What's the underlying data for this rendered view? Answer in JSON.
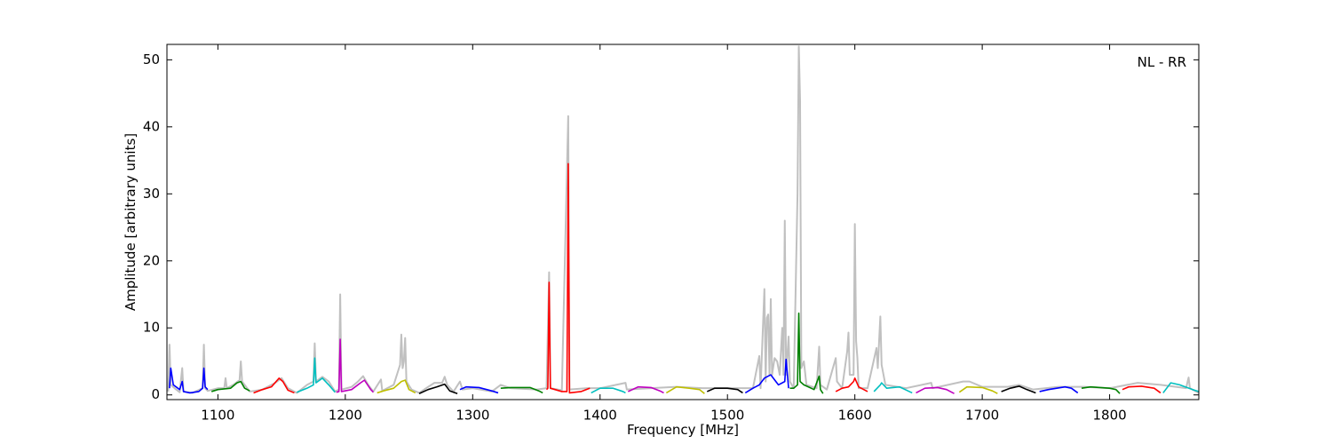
{
  "chart_data": {
    "type": "line",
    "xlabel": "Frequency [MHz]",
    "ylabel": "Amplitude [arbitrary units]",
    "annotation": "NL - RR",
    "xlim": [
      1060,
      1870
    ],
    "ylim": [
      -0.7,
      52.3
    ],
    "xticks": [
      1100,
      1200,
      1300,
      1400,
      1500,
      1600,
      1700,
      1800
    ],
    "yticks": [
      0,
      10,
      20,
      30,
      40,
      50
    ],
    "series": [
      {
        "color": "#c0c0c0",
        "x": [
          1061,
          1062,
          1063,
          1066,
          1070,
          1072,
          1073,
          1080,
          1088,
          1089,
          1090,
          1092,
          1100,
          1105,
          1106,
          1107,
          1112,
          1117,
          1118,
          1119,
          1125,
          1135,
          1145,
          1150,
          1155,
          1162,
          1170,
          1175,
          1176,
          1177,
          1182,
          1187,
          1192,
          1195,
          1196,
          1197,
          1205,
          1210,
          1214,
          1218,
          1222,
          1228,
          1229,
          1238,
          1243,
          1244,
          1245,
          1246,
          1247,
          1248,
          1252,
          1258,
          1265,
          1270,
          1276,
          1278,
          1280,
          1285,
          1290,
          1292,
          1300,
          1315,
          1322,
          1330,
          1350,
          1358,
          1360,
          1361,
          1370,
          1375,
          1376,
          1390,
          1400,
          1420,
          1421,
          1440,
          1460,
          1480,
          1500,
          1520,
          1525,
          1526,
          1529,
          1530,
          1531,
          1532,
          1533,
          1534,
          1535,
          1537,
          1539,
          1541,
          1543,
          1544,
          1545,
          1546,
          1548,
          1549,
          1552,
          1555,
          1556,
          1557,
          1558,
          1560,
          1562,
          1570,
          1572,
          1573,
          1578,
          1585,
          1586,
          1590,
          1594,
          1595,
          1596,
          1599,
          1600,
          1601,
          1602,
          1603,
          1610,
          1617,
          1618,
          1620,
          1621,
          1624,
          1640,
          1660,
          1661,
          1685,
          1690,
          1700,
          1720,
          1729,
          1740,
          1760,
          1780,
          1800,
          1822,
          1840,
          1860,
          1862,
          1863,
          1870
        ],
        "values": [
          0.5,
          7.5,
          1.5,
          1,
          0.4,
          4,
          0.5,
          0.3,
          1,
          7.5,
          1,
          0.6,
          1,
          1,
          2.5,
          1,
          1.5,
          2.2,
          5,
          2,
          0.5,
          0.8,
          1.8,
          2.5,
          1,
          0.3,
          1.5,
          2,
          7.7,
          2,
          2.7,
          2,
          0.5,
          0.8,
          15,
          0.8,
          1.2,
          2,
          2.8,
          1.5,
          0.5,
          2.3,
          0.6,
          1.5,
          4.5,
          9,
          4,
          5,
          8.5,
          2,
          0.8,
          0.3,
          1.2,
          1.8,
          1.8,
          2.7,
          1.5,
          0.5,
          2,
          0.8,
          1,
          0.5,
          1.5,
          1,
          0.8,
          1,
          18.3,
          1,
          0.7,
          41.6,
          0.8,
          1,
          1,
          1.8,
          0.8,
          1,
          1.2,
          1,
          1,
          1,
          5.8,
          1,
          15.8,
          2,
          11.5,
          12,
          3,
          14.3,
          3,
          5.5,
          5,
          3,
          10,
          3,
          26,
          3,
          8.7,
          2,
          1,
          30,
          52,
          44,
          4,
          5,
          1.5,
          1,
          7.2,
          1.5,
          0.8,
          5.5,
          2,
          1,
          6.5,
          9.3,
          3,
          3,
          25.5,
          8,
          5.5,
          1,
          1,
          7,
          4,
          11.7,
          4.5,
          1.5,
          1,
          1.8,
          1,
          2,
          2,
          1.2,
          1.2,
          1.5,
          0.8,
          1.2,
          1.2,
          1,
          1.8,
          1.5,
          1,
          2.6,
          1,
          0.3
        ]
      },
      {
        "color": "#0000ff",
        "x": [
          1062,
          1063,
          1065,
          1070,
          1072,
          1073,
          1078,
          1085,
          1088,
          1089,
          1090,
          1092
        ],
        "values": [
          1,
          4,
          1.5,
          0.8,
          2,
          0.5,
          0.3,
          0.5,
          1,
          4,
          1.2,
          0.8
        ]
      },
      {
        "color": "#008000",
        "x": [
          1095,
          1100,
          1110,
          1115,
          1118,
          1121,
          1125
        ],
        "values": [
          0.5,
          0.8,
          1,
          1.8,
          2,
          1,
          0.6
        ]
      },
      {
        "color": "#ff0000",
        "x": [
          1128,
          1135,
          1142,
          1148,
          1151,
          1155,
          1160
        ],
        "values": [
          0.3,
          0.8,
          1.2,
          2.5,
          2,
          0.7,
          0.3
        ]
      },
      {
        "color": "#00bfbf",
        "x": [
          1162,
          1170,
          1175,
          1176,
          1177,
          1182,
          1187,
          1192
        ],
        "values": [
          0.4,
          1,
          1.5,
          5.5,
          1.8,
          2.5,
          1.5,
          0.4
        ]
      },
      {
        "color": "#bf00bf",
        "x": [
          1193,
          1195,
          1196,
          1197,
          1205,
          1212,
          1215,
          1220,
          1222
        ],
        "values": [
          0.4,
          0.5,
          8.3,
          0.5,
          0.8,
          1.8,
          2.2,
          0.8,
          0.4
        ]
      },
      {
        "color": "#bfbf00",
        "x": [
          1225,
          1230,
          1238,
          1244,
          1247,
          1250,
          1255
        ],
        "values": [
          0.3,
          0.6,
          1,
          2,
          2.2,
          0.8,
          0.3
        ]
      },
      {
        "color": "#000000",
        "x": [
          1258,
          1265,
          1272,
          1278,
          1282,
          1288
        ],
        "values": [
          0.2,
          0.8,
          1.2,
          1.6,
          0.6,
          0.2
        ]
      },
      {
        "color": "#0000ff",
        "x": [
          1290,
          1295,
          1305,
          1315,
          1320
        ],
        "values": [
          0.8,
          1.2,
          1.1,
          0.6,
          0.3
        ]
      },
      {
        "color": "#008000",
        "x": [
          1322,
          1330,
          1345,
          1352,
          1355
        ],
        "values": [
          1,
          1.1,
          1.1,
          0.6,
          0.3
        ]
      },
      {
        "color": "#ff0000",
        "x": [
          1358,
          1359,
          1360,
          1361,
          1370,
          1374,
          1375,
          1376,
          1385,
          1392
        ],
        "values": [
          0.8,
          1,
          16.8,
          1,
          0.5,
          0.5,
          34.5,
          0.3,
          0.5,
          1
        ]
      },
      {
        "color": "#00bfbf",
        "x": [
          1393,
          1400,
          1410,
          1418,
          1420
        ],
        "values": [
          0.3,
          1,
          1,
          0.5,
          0.3
        ]
      },
      {
        "color": "#bf00bf",
        "x": [
          1422,
          1430,
          1440,
          1447,
          1450
        ],
        "values": [
          0.5,
          1.2,
          1.1,
          0.6,
          0.3
        ]
      },
      {
        "color": "#bfbf00",
        "x": [
          1452,
          1460,
          1470,
          1478,
          1482
        ],
        "values": [
          0.3,
          1.2,
          1,
          0.8,
          0.2
        ]
      },
      {
        "color": "#000000",
        "x": [
          1484,
          1490,
          1500,
          1508,
          1512
        ],
        "values": [
          0.5,
          1,
          1,
          0.8,
          0.3
        ]
      },
      {
        "color": "#0000ff",
        "x": [
          1514,
          1520,
          1525,
          1529,
          1534,
          1540,
          1545,
          1546,
          1548
        ],
        "values": [
          0.3,
          1,
          1.5,
          2.5,
          3,
          1.5,
          2,
          5.3,
          1
        ]
      },
      {
        "color": "#008000",
        "x": [
          1549,
          1552,
          1555,
          1556,
          1557,
          1560,
          1568,
          1572,
          1573,
          1575
        ],
        "values": [
          1,
          1,
          1.5,
          12.2,
          2,
          1.5,
          0.8,
          2.8,
          0.8,
          0.2
        ]
      },
      {
        "color": "#ff0000",
        "x": [
          1585,
          1590,
          1595,
          1599,
          1600,
          1603,
          1610
        ],
        "values": [
          0.5,
          1,
          1.2,
          2,
          2.5,
          1.2,
          0.5
        ]
      },
      {
        "color": "#00bfbf",
        "x": [
          1615,
          1620,
          1621,
          1625,
          1635,
          1645
        ],
        "values": [
          0.5,
          1.5,
          1.8,
          1,
          1.2,
          0.3
        ]
      },
      {
        "color": "#bf00bf",
        "x": [
          1648,
          1655,
          1665,
          1672,
          1678
        ],
        "values": [
          0.3,
          1,
          1.1,
          0.8,
          0.2
        ]
      },
      {
        "color": "#bfbf00",
        "x": [
          1682,
          1688,
          1700,
          1708,
          1712
        ],
        "values": [
          0.4,
          1.2,
          1.1,
          0.6,
          0.2
        ]
      },
      {
        "color": "#000000",
        "x": [
          1715,
          1722,
          1729,
          1735,
          1742
        ],
        "values": [
          0.5,
          1,
          1.3,
          0.8,
          0.3
        ]
      },
      {
        "color": "#0000ff",
        "x": [
          1745,
          1752,
          1765,
          1770,
          1775
        ],
        "values": [
          0.5,
          0.8,
          1.2,
          1,
          0.3
        ]
      },
      {
        "color": "#008000",
        "x": [
          1778,
          1785,
          1800,
          1805,
          1808
        ],
        "values": [
          1,
          1.2,
          1,
          0.8,
          0.2
        ]
      },
      {
        "color": "#ff0000",
        "x": [
          1810,
          1815,
          1825,
          1835,
          1840
        ],
        "values": [
          0.8,
          1.2,
          1.3,
          1,
          0.3
        ]
      },
      {
        "color": "#00bfbf",
        "x": [
          1842,
          1848,
          1855,
          1865,
          1870
        ],
        "values": [
          0.3,
          1.8,
          1.5,
          0.8,
          0.5
        ]
      }
    ]
  }
}
